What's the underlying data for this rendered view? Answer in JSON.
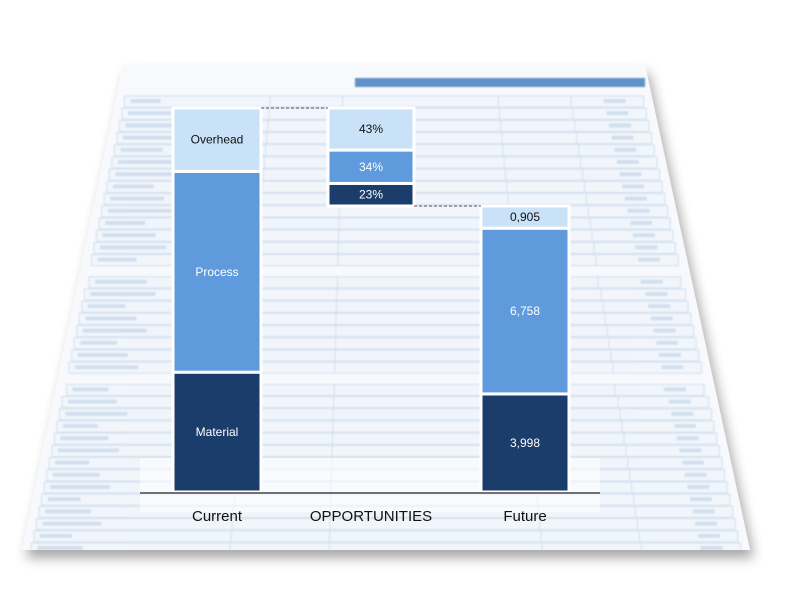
{
  "colors": {
    "material": "#1b3d6b",
    "process": "#5f9bdc",
    "overhead": "#c9e2f8",
    "sheet_header": "#2f6fb7",
    "sheet_line": "#b7cde6",
    "sheet_fill": "#eef4fb"
  },
  "chart_data": {
    "type": "bar",
    "categories": [
      "Current",
      "OPPORTUNITIES",
      "Future"
    ],
    "current": {
      "segments": [
        {
          "key": "material",
          "label": "Material"
        },
        {
          "key": "process",
          "label": "Process"
        },
        {
          "key": "overhead",
          "label": "Overhead"
        }
      ]
    },
    "opportunities": {
      "segments": [
        {
          "key": "overhead",
          "label": "43%"
        },
        {
          "key": "process",
          "label": "34%"
        },
        {
          "key": "material",
          "label": "23%"
        }
      ]
    },
    "future": {
      "segments": [
        {
          "key": "material",
          "value": 3.998,
          "label": "3,998"
        },
        {
          "key": "process",
          "value": 6.758,
          "label": "6,758"
        },
        {
          "key": "overhead",
          "value": 0.905,
          "label": "0,905"
        }
      ]
    }
  }
}
